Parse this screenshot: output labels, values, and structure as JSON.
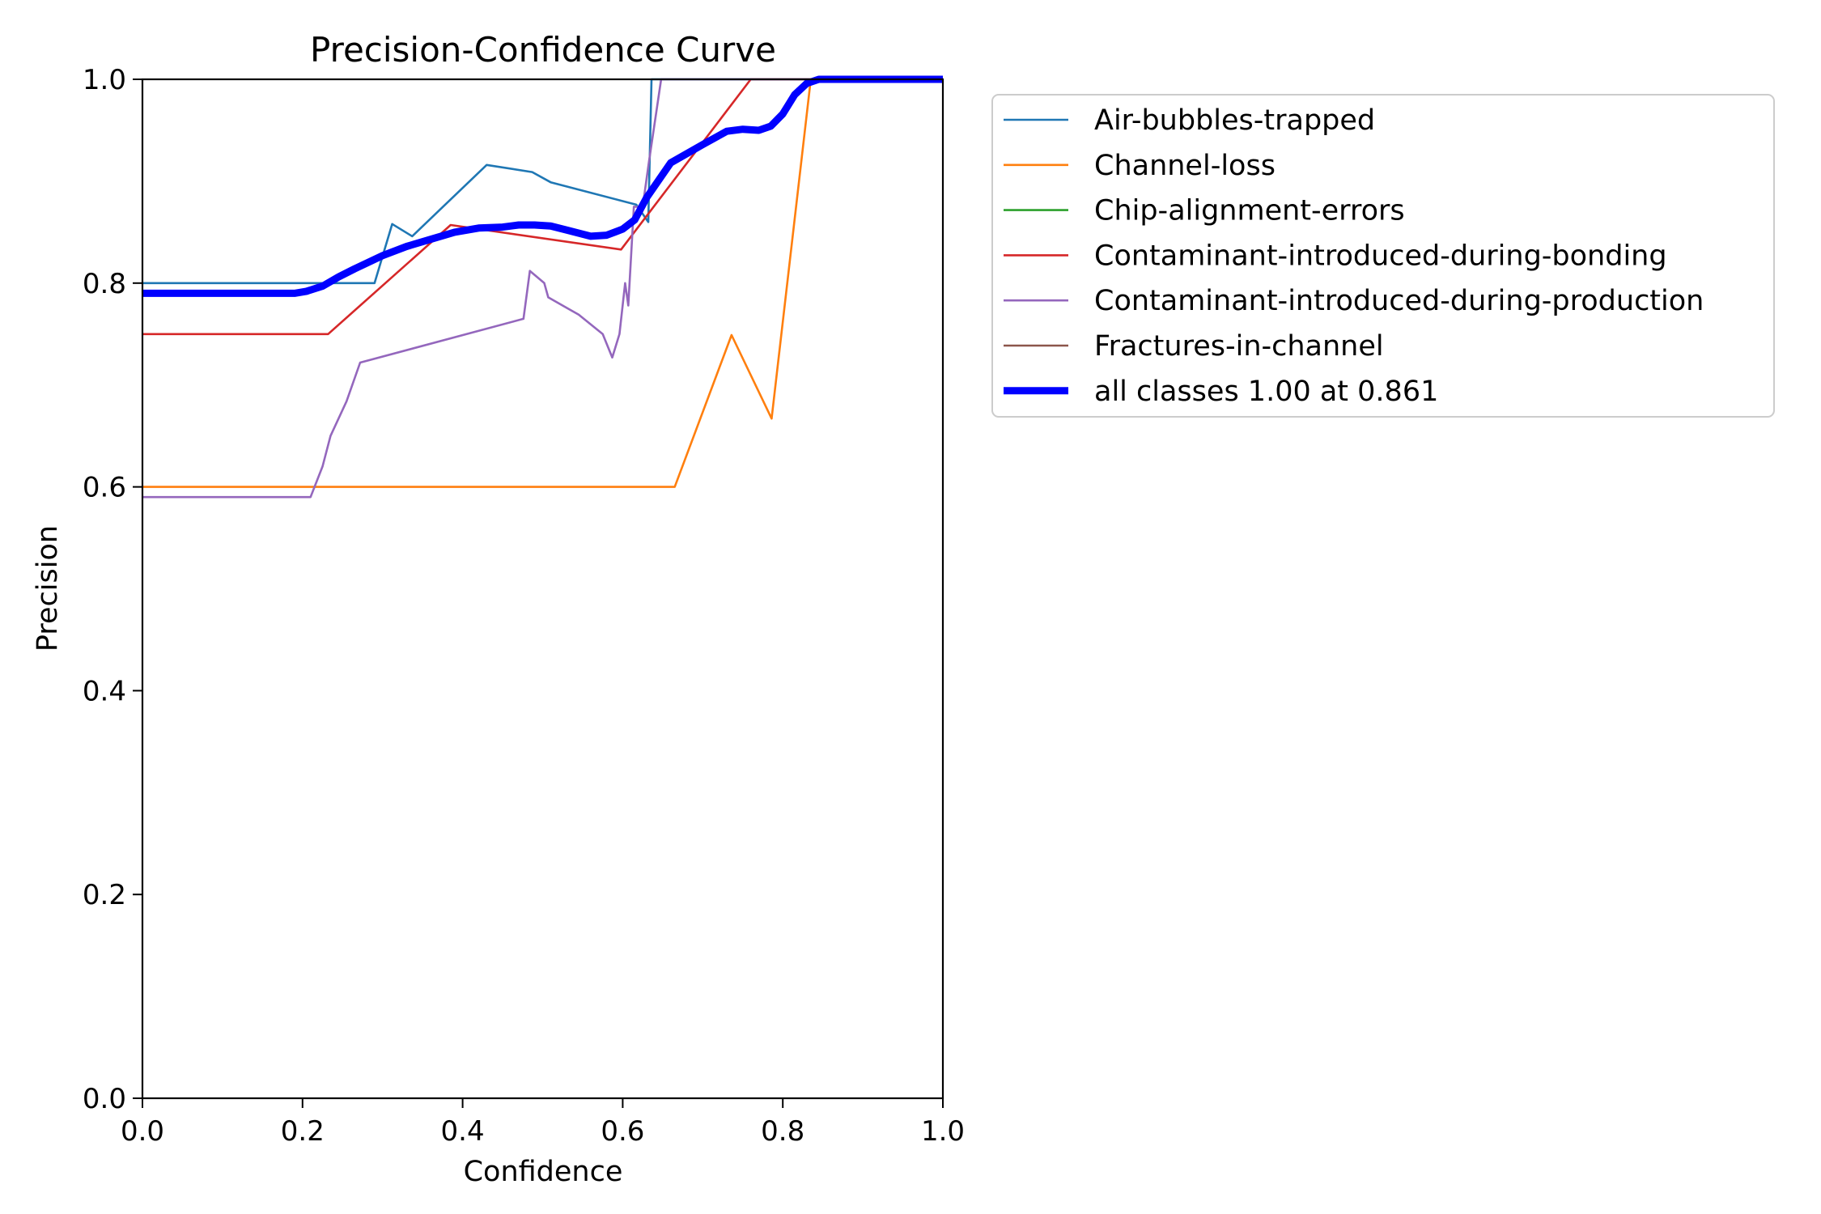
{
  "chart_data": {
    "type": "line",
    "title": "Precision-Confidence Curve",
    "xlabel": "Confidence",
    "ylabel": "Precision",
    "xlim": [
      0,
      1
    ],
    "ylim": [
      0,
      1
    ],
    "xticks": [
      "0.0",
      "0.2",
      "0.4",
      "0.6",
      "0.8",
      "1.0"
    ],
    "yticks": [
      "0.0",
      "0.2",
      "0.4",
      "0.6",
      "0.8",
      "1.0"
    ],
    "grid": false,
    "legend_position": "outside-right-top",
    "series": [
      {
        "name": "Air-bubbles-trapped",
        "color": "#1f77b4",
        "x": [
          0,
          0.29,
          0.312,
          0.337,
          0.43,
          0.487,
          0.51,
          0.617,
          0.632,
          0.636,
          1.0
        ],
        "y": [
          0.8,
          0.8,
          0.858,
          0.846,
          0.916,
          0.909,
          0.899,
          0.877,
          0.86,
          1.0,
          1.0
        ]
      },
      {
        "name": "Channel-loss",
        "color": "#ff7f0e",
        "x": [
          0,
          0.665,
          0.736,
          0.786,
          0.835,
          1.0
        ],
        "y": [
          0.6,
          0.6,
          0.749,
          0.667,
          1.0,
          1.0
        ]
      },
      {
        "name": "Chip-alignment-errors",
        "color": "#2ca02c",
        "x": [],
        "y": []
      },
      {
        "name": "Contaminant-introduced-during-bonding",
        "color": "#d62728",
        "x": [
          0,
          0.232,
          0.385,
          0.598,
          0.76,
          1.0
        ],
        "y": [
          0.75,
          0.75,
          0.857,
          0.833,
          1.0,
          1.0
        ]
      },
      {
        "name": "Contaminant-introduced-during-production",
        "color": "#9467bd",
        "x": [
          0,
          0.21,
          0.225,
          0.235,
          0.255,
          0.272,
          0.476,
          0.484,
          0.502,
          0.507,
          0.545,
          0.575,
          0.587,
          0.596,
          0.603,
          0.607,
          0.614,
          0.625,
          0.633,
          0.648,
          1.0
        ],
        "y": [
          0.59,
          0.59,
          0.62,
          0.65,
          0.684,
          0.722,
          0.765,
          0.812,
          0.8,
          0.786,
          0.769,
          0.75,
          0.727,
          0.75,
          0.8,
          0.778,
          0.875,
          0.875,
          0.92,
          1.0,
          1.0
        ]
      },
      {
        "name": "Fractures-in-channel",
        "color": "#8c564b",
        "x": [],
        "y": []
      },
      {
        "name": "all classes 1.00 at 0.861",
        "color": "#0000ff",
        "x": [
          0,
          0.1,
          0.19,
          0.205,
          0.225,
          0.245,
          0.265,
          0.3,
          0.33,
          0.36,
          0.39,
          0.42,
          0.45,
          0.47,
          0.49,
          0.51,
          0.53,
          0.56,
          0.58,
          0.6,
          0.615,
          0.63,
          0.66,
          0.7,
          0.73,
          0.75,
          0.77,
          0.785,
          0.8,
          0.815,
          0.83,
          0.845,
          0.86,
          1.0
        ],
        "y": [
          0.79,
          0.79,
          0.79,
          0.792,
          0.797,
          0.806,
          0.814,
          0.827,
          0.836,
          0.843,
          0.85,
          0.854,
          0.855,
          0.857,
          0.857,
          0.856,
          0.852,
          0.846,
          0.847,
          0.853,
          0.862,
          0.884,
          0.918,
          0.936,
          0.949,
          0.951,
          0.95,
          0.954,
          0.966,
          0.985,
          0.996,
          1.0,
          1.0,
          1.0
        ]
      }
    ]
  }
}
